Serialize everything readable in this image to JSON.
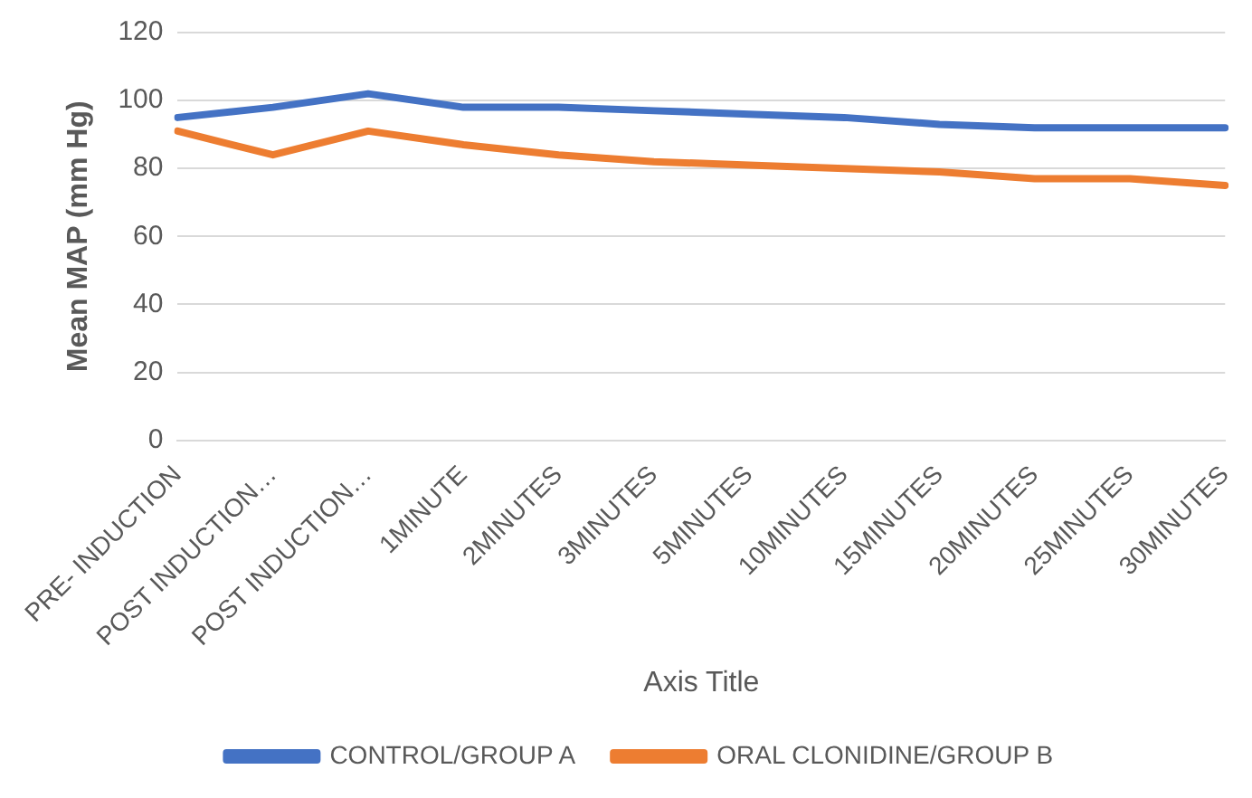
{
  "chart_data": {
    "type": "line",
    "xlabel": "Axis Title",
    "ylabel": "Mean MAP (mm Hg)",
    "categories": [
      "PRE- INDUCTION",
      "POST INDUCTION…",
      "POST INDUCTION…",
      "1MINUTE",
      "2MINUTES",
      "3MINUTES",
      "5MINUTES",
      "10MINUTES",
      "15MINUTES",
      "20MINUTES",
      "25MINUTES",
      "30MINUTES"
    ],
    "series": [
      {
        "name": "CONTROL/GROUP A",
        "color": "#4472c4",
        "values": [
          95,
          98,
          102,
          98,
          98,
          97,
          96,
          95,
          93,
          92,
          92,
          92
        ]
      },
      {
        "name": "ORAL CLONIDINE/GROUP B",
        "color": "#ed7d31",
        "values": [
          91,
          84,
          91,
          87,
          84,
          82,
          81,
          80,
          79,
          77,
          77,
          75
        ]
      }
    ],
    "ylim": [
      0,
      120
    ],
    "yticks": [
      0,
      20,
      40,
      60,
      80,
      100,
      120
    ],
    "grid": "y",
    "legend": "bottom",
    "marker": "none",
    "line_style": "solid"
  }
}
